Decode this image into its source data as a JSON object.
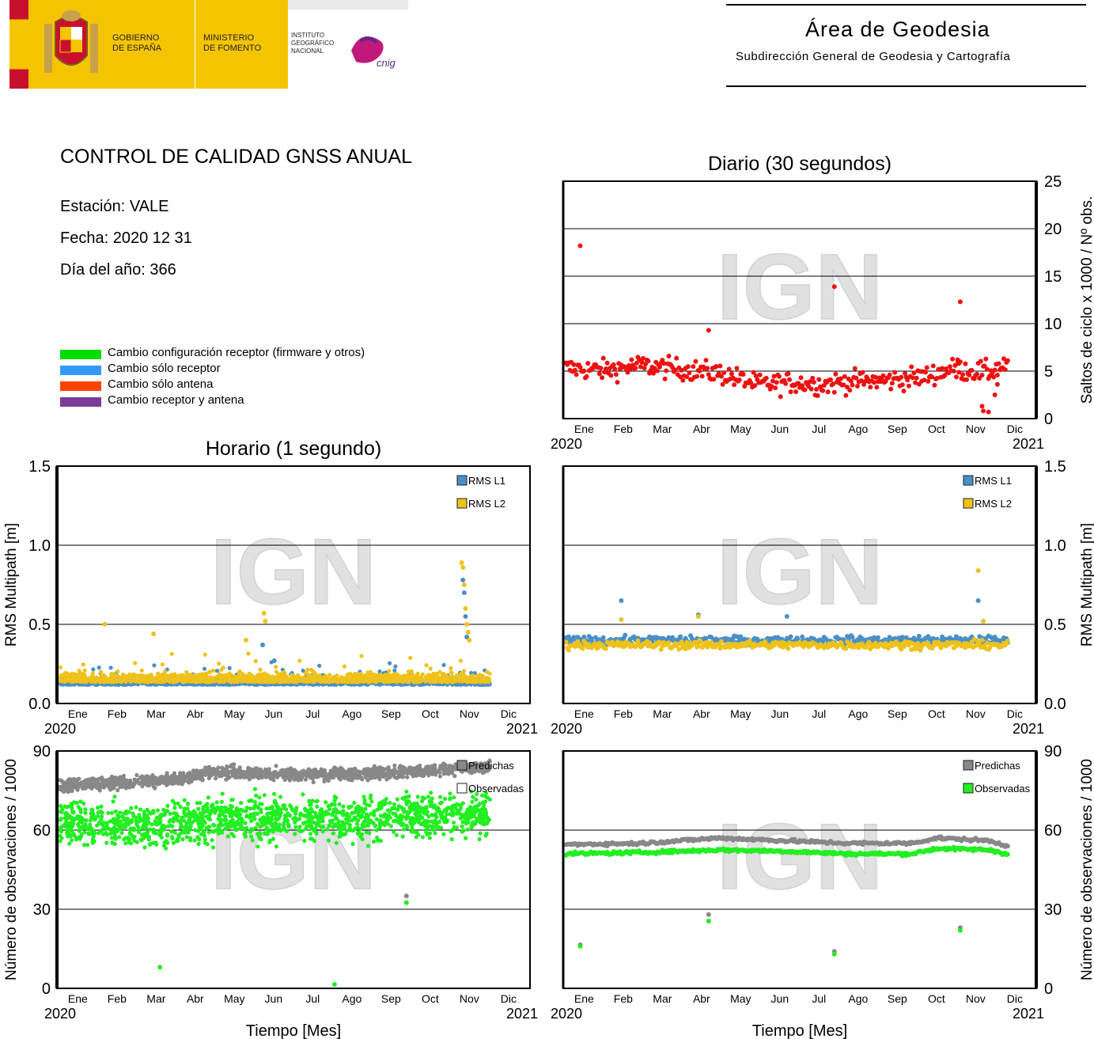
{
  "header": {
    "gov_line1": "GOBIERNO",
    "gov_line2": "DE ESPAÑA",
    "min_line1": "MINISTERIO",
    "min_line2": "DE FOMENTO",
    "ign_line1": "INSTITUTO",
    "ign_line2": "GEOGRÁFICO",
    "ign_line3": "NACIONAL",
    "cnig_logo_text": "cnig",
    "area_title": "Área de Geodesia",
    "area_subtitle": "Subdirección General de Geodesia y Cartografía",
    "colors": {
      "yellow": "#f5c400",
      "red": "#c8102e",
      "eu_blue": "#2b3a8f"
    }
  },
  "report": {
    "title": "CONTROL DE CALIDAD GNSS ANUAL",
    "station": "Estación: VALE",
    "date": "Fecha: 2020 12 31",
    "doy": "Día del año: 366",
    "legend": [
      {
        "label": "Cambio configuración receptor (firmware y otros)",
        "color": "#00dd00"
      },
      {
        "label": "Cambio sólo receptor",
        "color": "#3399ff"
      },
      {
        "label": "Cambio sólo antena",
        "color": "#ff4400"
      },
      {
        "label": "Cambio receptor y antena",
        "color": "#7a3c99"
      }
    ]
  },
  "watermark": "IGN",
  "chart_data": [
    {
      "id": "daily-cycleslips",
      "type": "scatter",
      "title": "Diario (30 segundos)",
      "ylabel": "Saltos de ciclo x 1000 / Nº obs.",
      "ylim": [
        0,
        25
      ],
      "yticks": [
        "0",
        "5",
        "10",
        "15",
        "20",
        "25"
      ],
      "xticks": [
        "Ene",
        "Feb",
        "Mar",
        "Abr",
        "May",
        "Jun",
        "Jul",
        "Ago",
        "Sep",
        "Oct",
        "Nov",
        "Dic"
      ],
      "xstart": "2020",
      "xend": "2021",
      "y_axis_side": "right",
      "grid": true,
      "series": [
        {
          "color": "#ee1111",
          "outliers": [
            [
              12,
              18.2
            ],
            [
              210,
              13.9
            ],
            [
              308,
              12.3
            ],
            [
              112,
              9.3
            ],
            [
              306,
              6.2
            ],
            [
              307,
              5.8
            ],
            [
              325,
              1.3
            ],
            [
              326,
              0.8
            ],
            [
              330,
              0.7
            ],
            [
              335,
              2.5
            ],
            [
              337,
              3.6
            ]
          ],
          "trend": [
            [
              1,
              5.3
            ],
            [
              30,
              5.1
            ],
            [
              60,
              5.6
            ],
            [
              90,
              5.2
            ],
            [
              120,
              4.8
            ],
            [
              150,
              3.6
            ],
            [
              180,
              3.8
            ],
            [
              200,
              3.6
            ],
            [
              220,
              3.9
            ],
            [
              250,
              4.0
            ],
            [
              280,
              4.4
            ],
            [
              300,
              5.2
            ],
            [
              330,
              4.9
            ],
            [
              345,
              5.8
            ]
          ],
          "x_range": [
            1,
            345
          ],
          "noise": 1.1
        }
      ]
    },
    {
      "id": "hourly-multipath",
      "type": "scatter",
      "title": "Horario (1 segundo)",
      "ylabel": "RMS Multipath [m]",
      "ylim": [
        0,
        1.5
      ],
      "yticks": [
        "0.0",
        "0.5",
        "1.0",
        "1.5"
      ],
      "xticks": [
        "Ene",
        "Feb",
        "Mar",
        "Abr",
        "May",
        "Jun",
        "Jul",
        "Ago",
        "Sep",
        "Oct",
        "Nov",
        "Dic"
      ],
      "xstart": "2020",
      "xend": "2021",
      "y_axis_side": "left",
      "grid": true,
      "legend": [
        "RMS L1",
        "RMS L2"
      ],
      "series": [
        {
          "name": "RMS L1",
          "color": "#4a90c8",
          "base": 0.13,
          "noise": 0.04,
          "x_range": [
            1,
            336
          ],
          "outliers": [
            [
              159,
              0.37
            ],
            [
              168,
              0.27
            ],
            [
              315,
              0.78
            ],
            [
              316,
              0.7
            ],
            [
              317,
              0.55
            ],
            [
              318,
              0.42
            ]
          ]
        },
        {
          "name": "RMS L2",
          "color": "#eec21b",
          "base": 0.15,
          "noise": 0.05,
          "x_range": [
            1,
            336
          ],
          "outliers": [
            [
              36,
              0.5
            ],
            [
              74,
              0.44
            ],
            [
              146,
              0.4
            ],
            [
              160,
              0.57
            ],
            [
              161,
              0.52
            ],
            [
              314,
              0.89
            ],
            [
              315,
              0.86
            ],
            [
              316,
              0.75
            ],
            [
              317,
              0.6
            ],
            [
              318,
              0.5
            ],
            [
              319,
              0.45
            ],
            [
              320,
              0.4
            ]
          ]
        }
      ]
    },
    {
      "id": "daily-multipath",
      "type": "scatter",
      "ylabel": "RMS Multipath [m]",
      "ylim": [
        0,
        1.5
      ],
      "yticks": [
        "0.0",
        "0.5",
        "1.0",
        "1.5"
      ],
      "xticks": [
        "Ene",
        "Feb",
        "Mar",
        "Abr",
        "May",
        "Jun",
        "Jul",
        "Ago",
        "Sep",
        "Oct",
        "Nov",
        "Dic"
      ],
      "xstart": "2020",
      "xend": "2021",
      "y_axis_side": "right",
      "grid": true,
      "legend": [
        "RMS L1",
        "RMS L2"
      ],
      "series": [
        {
          "name": "RMS L1",
          "color": "#4a90c8",
          "base": 0.4,
          "noise": 0.025,
          "x_range": [
            1,
            345
          ],
          "outliers": [
            [
              44,
              0.65
            ],
            [
              104,
              0.56
            ],
            [
              173,
              0.55
            ],
            [
              322,
              0.65
            ]
          ]
        },
        {
          "name": "RMS L2",
          "color": "#eec21b",
          "base": 0.37,
          "noise": 0.025,
          "x_range": [
            1,
            345
          ],
          "outliers": [
            [
              44,
              0.53
            ],
            [
              104,
              0.55
            ],
            [
              322,
              0.84
            ],
            [
              326,
              0.52
            ]
          ]
        }
      ]
    },
    {
      "id": "hourly-observations",
      "type": "scatter",
      "ylabel": "Número de observaciones / 1000",
      "xlabel": "Tiempo [Mes]",
      "ylim": [
        0,
        90
      ],
      "yticks": [
        "0",
        "30",
        "60",
        "90"
      ],
      "xticks": [
        "Ene",
        "Feb",
        "Mar",
        "Abr",
        "May",
        "Jun",
        "Jul",
        "Ago",
        "Sep",
        "Oct",
        "Nov",
        "Dic"
      ],
      "xstart": "2020",
      "xend": "2021",
      "y_axis_side": "left",
      "grid": true,
      "legend": [
        "Predichas",
        "Observadas"
      ],
      "series": [
        {
          "name": "Predichas",
          "color": "#888888",
          "trend": [
            [
              1,
              77
            ],
            [
              90,
              79
            ],
            [
              120,
              82
            ],
            [
              200,
              81
            ],
            [
              270,
              82
            ],
            [
              336,
              84
            ]
          ],
          "noise": 2.2,
          "x_range": [
            1,
            336
          ],
          "outliers": [
            [
              271,
              35
            ]
          ]
        },
        {
          "name": "Observadas",
          "color": "#22ee22",
          "trend": [
            [
              1,
              62
            ],
            [
              90,
              62
            ],
            [
              120,
              65
            ],
            [
              200,
              64
            ],
            [
              270,
              65
            ],
            [
              336,
              66
            ]
          ],
          "noise": 8,
          "x_range": [
            1,
            336
          ],
          "outliers": [
            [
              79,
              8
            ],
            [
              215,
              1.5
            ],
            [
              271,
              32.5
            ]
          ]
        }
      ]
    },
    {
      "id": "daily-observations",
      "type": "scatter",
      "ylabel": "Número de observaciones / 1000",
      "xlabel": "Tiempo [Mes]",
      "ylim": [
        0,
        90
      ],
      "yticks": [
        "0",
        "30",
        "60",
        "90"
      ],
      "xticks": [
        "Ene",
        "Feb",
        "Mar",
        "Abr",
        "May",
        "Jun",
        "Jul",
        "Ago",
        "Sep",
        "Oct",
        "Nov",
        "Dic"
      ],
      "xstart": "2020",
      "xend": "2021",
      "y_axis_side": "right",
      "grid": true,
      "legend": [
        "Predichas",
        "Observadas"
      ],
      "series": [
        {
          "name": "Predichas",
          "color": "#888888",
          "trend": [
            [
              1,
              54.5
            ],
            [
              60,
              55
            ],
            [
              120,
              57
            ],
            [
              170,
              56
            ],
            [
              220,
              55
            ],
            [
              270,
              55
            ],
            [
              290,
              57
            ],
            [
              330,
              56
            ],
            [
              345,
              54
            ]
          ],
          "noise": 0.6,
          "x_range": [
            1,
            345
          ],
          "outliers": [
            [
              12,
              16.5
            ],
            [
              112,
              28
            ],
            [
              210,
              14
            ],
            [
              308,
              23
            ]
          ]
        },
        {
          "name": "Observadas",
          "color": "#22ee22",
          "trend": [
            [
              1,
              51
            ],
            [
              60,
              51.5
            ],
            [
              120,
              52.5
            ],
            [
              170,
              52
            ],
            [
              220,
              51
            ],
            [
              270,
              51
            ],
            [
              290,
              53
            ],
            [
              330,
              52.5
            ],
            [
              345,
              51
            ]
          ],
          "noise": 0.6,
          "x_range": [
            1,
            345
          ],
          "outliers": [
            [
              12,
              16
            ],
            [
              112,
              25.5
            ],
            [
              210,
              13
            ],
            [
              308,
              22
            ]
          ]
        }
      ]
    }
  ]
}
